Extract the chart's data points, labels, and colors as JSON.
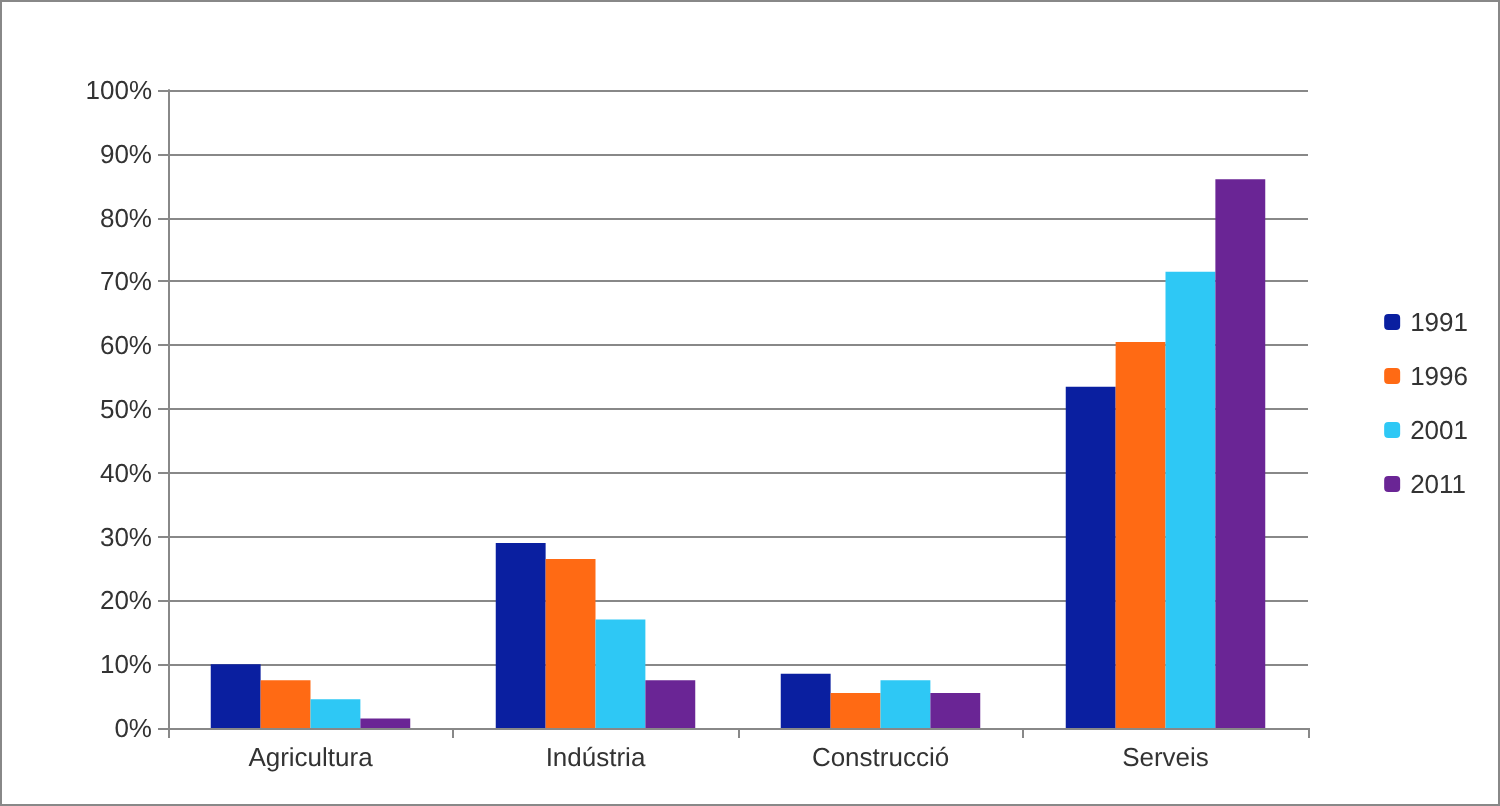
{
  "chart_data": {
    "type": "bar",
    "categories": [
      "Agricultura",
      "Indústria",
      "Construcció",
      "Serveis"
    ],
    "series": [
      {
        "name": "1991",
        "color": "#0a1fa0",
        "values": [
          10,
          29,
          8.5,
          53.5
        ]
      },
      {
        "name": "1996",
        "color": "#ff6a14",
        "values": [
          7.5,
          26.5,
          5.5,
          60.5
        ]
      },
      {
        "name": "2001",
        "color": "#2ec8f5",
        "values": [
          4.5,
          17,
          7.5,
          71.5
        ]
      },
      {
        "name": "2011",
        "color": "#6a2595",
        "values": [
          1.5,
          7.5,
          5.5,
          86
        ]
      }
    ],
    "ylim": [
      0,
      100
    ],
    "yticks": [
      {
        "value": 0,
        "label": "0%"
      },
      {
        "value": 10,
        "label": "10%"
      },
      {
        "value": 20,
        "label": "20%"
      },
      {
        "value": 30,
        "label": "30%"
      },
      {
        "value": 40,
        "label": "40%"
      },
      {
        "value": 50,
        "label": "50%"
      },
      {
        "value": 60,
        "label": "60%"
      },
      {
        "value": 70,
        "label": "70%"
      },
      {
        "value": 80,
        "label": "80%"
      },
      {
        "value": 90,
        "label": "90%"
      },
      {
        "value": 100,
        "label": "100%"
      }
    ],
    "grid": "y",
    "legend": "right"
  }
}
